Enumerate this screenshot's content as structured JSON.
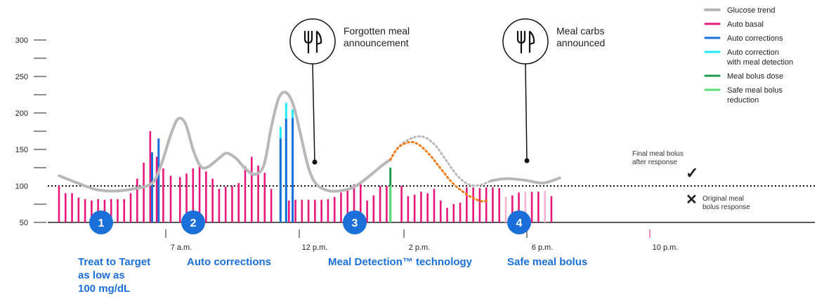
{
  "chart_data": {
    "type": "bar",
    "title": "",
    "ylim": [
      50,
      300
    ],
    "y_ticks": [
      "50",
      "100",
      "150",
      "200",
      "250",
      "300"
    ],
    "target_line": 100,
    "x_ticks": [
      "7 a.m.",
      "12 p.m.",
      "2 p.m.",
      "6 p.m.",
      "10 p.m."
    ],
    "glucose_trend": [
      [
        0.0,
        114
      ],
      [
        1.0,
        104
      ],
      [
        2.0,
        95
      ],
      [
        3.0,
        93
      ],
      [
        4.0,
        96
      ],
      [
        5.0,
        104
      ],
      [
        5.5,
        130
      ],
      [
        6.0,
        170
      ],
      [
        6.4,
        192
      ],
      [
        6.8,
        185
      ],
      [
        7.2,
        150
      ],
      [
        7.6,
        127
      ],
      [
        8.0,
        126
      ],
      [
        8.6,
        138
      ],
      [
        9.0,
        145
      ],
      [
        9.5,
        138
      ],
      [
        10.0,
        124
      ],
      [
        10.5,
        116
      ],
      [
        11.0,
        128
      ],
      [
        11.4,
        180
      ],
      [
        11.8,
        220
      ],
      [
        12.2,
        228
      ],
      [
        12.6,
        210
      ],
      [
        13.0,
        168
      ],
      [
        13.4,
        125
      ],
      [
        13.8,
        103
      ],
      [
        14.4,
        94
      ],
      [
        15.0,
        93
      ],
      [
        15.8,
        98
      ],
      [
        16.6,
        112
      ],
      [
        17.3,
        127
      ],
      [
        17.8,
        136
      ]
    ],
    "forecast_final": [
      [
        17.8,
        136
      ],
      [
        18.3,
        155
      ],
      [
        19.0,
        166
      ],
      [
        19.6,
        167
      ],
      [
        20.2,
        156
      ],
      [
        20.8,
        135
      ],
      [
        21.4,
        114
      ],
      [
        22.0,
        102
      ],
      [
        22.6,
        101
      ],
      [
        23.2,
        107
      ],
      [
        24.0,
        110
      ],
      [
        25.0,
        108
      ],
      [
        26.0,
        104
      ],
      [
        26.9,
        111
      ]
    ],
    "forecast_original": [
      [
        17.8,
        136
      ],
      [
        18.2,
        152
      ],
      [
        18.8,
        160
      ],
      [
        19.3,
        157
      ],
      [
        19.9,
        143
      ],
      [
        20.5,
        124
      ],
      [
        21.1,
        105
      ],
      [
        21.7,
        92
      ],
      [
        22.2,
        84
      ],
      [
        22.7,
        79
      ],
      [
        23.0,
        80
      ]
    ],
    "series": [
      {
        "name": "Auto basal",
        "color": "#e6197b",
        "x": [
          0.0,
          0.35,
          0.7,
          1.05,
          1.4,
          1.75,
          2.1,
          2.45,
          2.8,
          3.15,
          3.5,
          3.85,
          4.2,
          4.55,
          4.9,
          5.25,
          5.6,
          6.0,
          6.5,
          6.85,
          7.2,
          7.55,
          7.9,
          8.25,
          8.6,
          8.95,
          9.3,
          9.65,
          10.0,
          10.35,
          10.7,
          11.05,
          11.4,
          12.35,
          12.7,
          13.05,
          13.4,
          13.75,
          14.1,
          14.45,
          14.8,
          15.15,
          15.5,
          15.85,
          16.2,
          16.55,
          16.9,
          17.25,
          17.6,
          18.4,
          18.75,
          19.1,
          19.45,
          19.8,
          20.15,
          20.5,
          20.85,
          21.2,
          21.55,
          21.9,
          22.25,
          22.6,
          22.95,
          23.3,
          23.65,
          24.0,
          24.35,
          24.7,
          25.05,
          25.4,
          25.75,
          26.1,
          26.45
        ],
        "values": [
          100,
          90,
          90,
          84,
          82,
          80,
          82,
          81,
          82,
          82,
          82,
          90,
          110,
          132,
          175,
          140,
          124,
          114,
          112,
          117,
          124,
          127,
          120,
          110,
          96,
          99,
          100,
          104,
          127,
          140,
          128,
          118,
          96,
          80,
          81,
          81,
          81,
          81,
          81,
          82,
          85,
          91,
          96,
          102,
          104,
          80,
          87,
          100,
          100,
          100,
          86,
          88,
          92,
          90,
          96,
          80,
          70,
          75,
          77,
          98,
          98,
          97,
          98,
          98,
          97,
          85,
          87,
          91,
          92,
          92,
          92,
          93,
          86
        ],
        "faded_from_x": 23.0
      },
      {
        "name": "Auto corrections",
        "color": "#1a6fd8",
        "x": [
          5.0,
          5.35,
          11.9,
          12.2,
          12.55
        ],
        "values": [
          146,
          165,
          165,
          192,
          193
        ]
      },
      {
        "name": "Auto correction with meal detection",
        "color": "#25e8f2",
        "x": [
          11.9,
          12.2,
          12.55
        ],
        "values": [
          181,
          214,
          205
        ]
      },
      {
        "name": "Meal bolus dose",
        "color": "#1e9a52",
        "x": [
          17.8
        ],
        "values": [
          125
        ]
      },
      {
        "name": "Safe meal bolus reduction",
        "color": "#5de07a",
        "x": [
          17.8
        ],
        "values": [
          100
        ]
      }
    ],
    "legend": [
      {
        "label": "Glucose trend",
        "color": "#b8b8b8",
        "kind": "line"
      },
      {
        "label": "Auto basal",
        "color": "#e6197b",
        "kind": "line"
      },
      {
        "label": "Auto corrections",
        "color": "#1a6fd8",
        "kind": "line"
      },
      {
        "label": "Auto correction with meal detection",
        "lines": [
          "Auto correction",
          "with meal detection"
        ],
        "color": "#25e8f2",
        "kind": "line"
      },
      {
        "label": "Meal bolus dose",
        "color": "#1e9a52",
        "kind": "line"
      },
      {
        "label": "Safe meal bolus reduction",
        "lines": [
          "Safe meal bolus",
          "reduction"
        ],
        "color": "#5de07a",
        "kind": "line"
      }
    ],
    "annotations": {
      "forgotten_meal": [
        "Forgotten meal",
        "announcement"
      ],
      "meal_carbs": [
        "Meal carbs",
        "announced"
      ],
      "final_bolus": [
        "Final meal bolus",
        "after response"
      ],
      "original_bolus": [
        "Original meal",
        "bolus response"
      ],
      "final_bolus_mark": "✓",
      "original_bolus_mark": "✕"
    },
    "features": [
      {
        "number": "1",
        "lines": [
          "Treat to Target",
          "as low as",
          "100 mg/dL"
        ]
      },
      {
        "number": "2",
        "lines": [
          "Auto corrections"
        ]
      },
      {
        "number": "3",
        "lines": [
          "Meal Detection™ technology"
        ]
      },
      {
        "number": "4",
        "lines": [
          "Safe meal bolus"
        ]
      }
    ],
    "colors": {
      "glucose": "#b8b8b8",
      "forecast": "#f07d1a",
      "accent_blue": "#1a6fd8",
      "check": "#f07d1a",
      "cross": "#e8203c",
      "faded_basal": "#f5b3d1"
    }
  }
}
